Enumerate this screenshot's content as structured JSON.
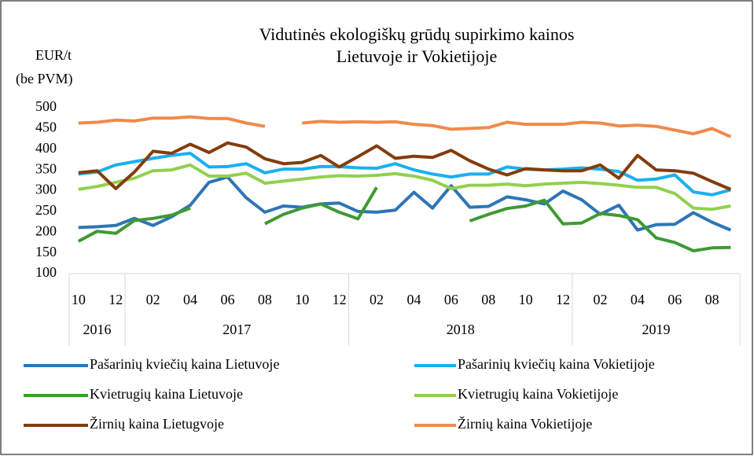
{
  "chart_data": {
    "type": "line",
    "title": [
      "Vidutinės ekologiškų grūdų supirkimo kainos",
      "Lietuvoje ir Vokietijoje"
    ],
    "ylabel": [
      "EUR/t",
      "(be PVM)"
    ],
    "categories": [
      "10",
      null,
      "12",
      null,
      "02",
      null,
      "04",
      null,
      "06",
      null,
      "08",
      null,
      "10",
      null,
      "12",
      null,
      "02",
      null,
      "04",
      null,
      "06",
      null,
      "08",
      null,
      "10",
      null,
      "12",
      null,
      "02",
      null,
      "04",
      null,
      "06",
      null,
      "08",
      null
    ],
    "years": [
      "2016",
      "2017",
      "2018",
      "2019"
    ],
    "year_spans": [
      3,
      12,
      12,
      9
    ],
    "ylim": [
      100,
      500
    ],
    "yticks": [
      100,
      150,
      200,
      250,
      300,
      350,
      400,
      450,
      500
    ],
    "grid": false,
    "legend": "bottom",
    "series": [
      {
        "name": "Pašarinių kviečių kaina Lietuvoje",
        "color": "#2e75b6",
        "values": [
          211,
          213,
          216,
          233,
          216,
          237,
          265,
          320,
          333,
          283,
          248,
          263,
          260,
          268,
          270,
          250,
          248,
          253,
          296,
          258,
          312,
          260,
          262,
          285,
          278,
          268,
          299,
          278,
          243,
          265,
          205,
          218,
          219,
          247,
          224,
          205
        ]
      },
      {
        "name": "Pašarinių kviečių kaina Vokietijoje",
        "color": "#1ab0ef",
        "values": [
          340,
          345,
          362,
          370,
          378,
          385,
          390,
          357,
          358,
          365,
          343,
          352,
          352,
          358,
          358,
          355,
          354,
          365,
          350,
          340,
          333,
          340,
          340,
          357,
          352,
          350,
          352,
          355,
          352,
          346,
          325,
          328,
          338,
          297,
          290,
          302
        ]
      },
      {
        "name": "Kvietrugių kaina Lietuvoje",
        "color": "#3f9a33",
        "values": [
          178,
          202,
          197,
          228,
          233,
          241,
          258,
          null,
          null,
          null,
          220,
          243,
          258,
          268,
          248,
          232,
          308,
          null,
          null,
          null,
          null,
          227,
          243,
          257,
          263,
          277,
          220,
          222,
          245,
          240,
          230,
          186,
          175,
          155,
          162,
          163
        ]
      },
      {
        "name": "Kvietrugių kaina Vokietijoje",
        "color": "#92d050",
        "values": [
          303,
          310,
          320,
          330,
          348,
          350,
          362,
          335,
          335,
          342,
          318,
          323,
          328,
          333,
          336,
          335,
          337,
          341,
          335,
          325,
          305,
          313,
          313,
          316,
          312,
          316,
          318,
          320,
          317,
          313,
          308,
          308,
          293,
          258,
          255,
          263
        ]
      },
      {
        "name": "Žirnių kaina Lietugvoje",
        "color": "#843c0c",
        "values": [
          343,
          348,
          305,
          345,
          395,
          390,
          412,
          392,
          415,
          405,
          377,
          365,
          368,
          385,
          357,
          382,
          408,
          378,
          383,
          380,
          397,
          372,
          352,
          338,
          353,
          350,
          348,
          348,
          362,
          330,
          385,
          350,
          348,
          342,
          322,
          303
        ]
      },
      {
        "name": "Žirnių kaina Vokietijoje",
        "color": "#f08a4b",
        "values": [
          463,
          465,
          470,
          468,
          475,
          475,
          478,
          474,
          474,
          463,
          455,
          null,
          463,
          467,
          465,
          466,
          465,
          466,
          460,
          457,
          448,
          450,
          452,
          465,
          460,
          460,
          460,
          465,
          463,
          456,
          458,
          455,
          446,
          437,
          450,
          430
        ]
      }
    ]
  }
}
